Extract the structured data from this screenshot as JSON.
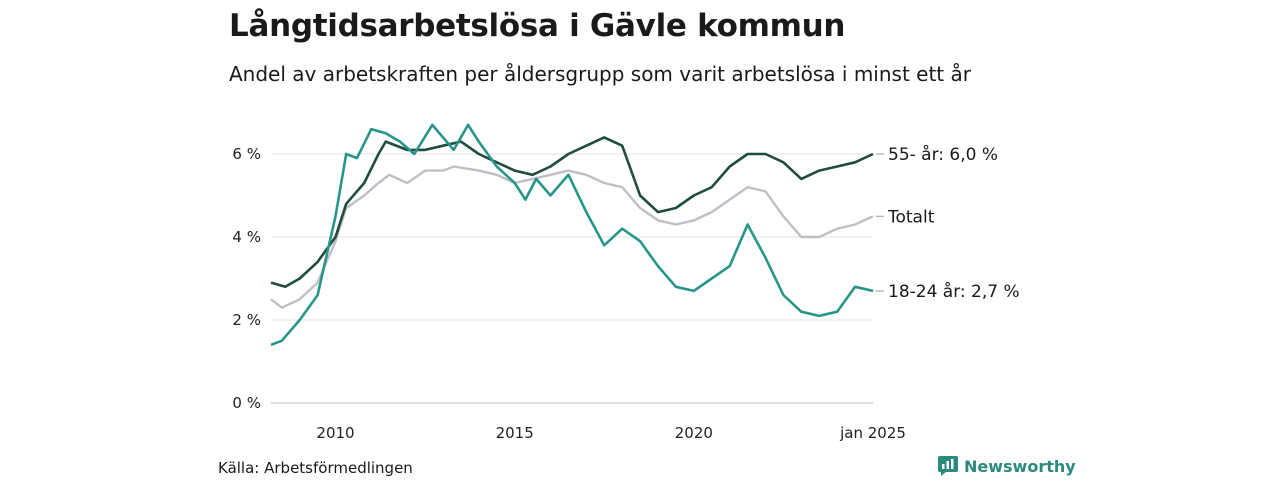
{
  "title": "Långtidsarbetslösa i Gävle kommun",
  "subtitle": "Andel av arbetskraften per åldersgrupp som varit arbetslösa i minst ett år",
  "source": "Källa: Arbetsförmedlingen",
  "brand": "Newsworthy",
  "chart_data": {
    "type": "line",
    "x_ticks": [
      "2010",
      "2015",
      "2020",
      "jan 2025"
    ],
    "y_ticks": [
      "0 %",
      "2 %",
      "4 %",
      "6 %"
    ],
    "ylim": [
      0,
      7
    ],
    "x_range": [
      "2008-03",
      "2025-01"
    ],
    "grid": true,
    "series": [
      {
        "name": "Totalt",
        "label": "Totalt",
        "color": "#c0bec6",
        "values": [
          [
            2008.2,
            2.5
          ],
          [
            2008.5,
            2.3
          ],
          [
            2009.0,
            2.5
          ],
          [
            2009.5,
            2.9
          ],
          [
            2010.0,
            3.9
          ],
          [
            2010.3,
            4.7
          ],
          [
            2010.8,
            5.0
          ],
          [
            2011.2,
            5.3
          ],
          [
            2011.5,
            5.5
          ],
          [
            2012.0,
            5.3
          ],
          [
            2012.5,
            5.6
          ],
          [
            2013.0,
            5.6
          ],
          [
            2013.3,
            5.7
          ],
          [
            2014.0,
            5.6
          ],
          [
            2014.5,
            5.5
          ],
          [
            2015.0,
            5.3
          ],
          [
            2015.5,
            5.4
          ],
          [
            2016.0,
            5.5
          ],
          [
            2016.5,
            5.6
          ],
          [
            2017.0,
            5.5
          ],
          [
            2017.5,
            5.3
          ],
          [
            2018.0,
            5.2
          ],
          [
            2018.5,
            4.7
          ],
          [
            2019.0,
            4.4
          ],
          [
            2019.5,
            4.3
          ],
          [
            2020.0,
            4.4
          ],
          [
            2020.5,
            4.6
          ],
          [
            2021.0,
            4.9
          ],
          [
            2021.5,
            5.2
          ],
          [
            2022.0,
            5.1
          ],
          [
            2022.5,
            4.5
          ],
          [
            2023.0,
            4.0
          ],
          [
            2023.5,
            4.0
          ],
          [
            2024.0,
            4.2
          ],
          [
            2024.5,
            4.3
          ],
          [
            2025.0,
            4.5
          ]
        ]
      },
      {
        "name": "55- år",
        "label": "55- år: 6,0 %",
        "color": "#1f4d40",
        "values": [
          [
            2008.2,
            2.9
          ],
          [
            2008.6,
            2.8
          ],
          [
            2009.0,
            3.0
          ],
          [
            2009.5,
            3.4
          ],
          [
            2010.0,
            4.0
          ],
          [
            2010.3,
            4.8
          ],
          [
            2010.8,
            5.3
          ],
          [
            2011.2,
            6.0
          ],
          [
            2011.4,
            6.3
          ],
          [
            2012.0,
            6.1
          ],
          [
            2012.5,
            6.1
          ],
          [
            2013.0,
            6.2
          ],
          [
            2013.5,
            6.3
          ],
          [
            2014.0,
            6.0
          ],
          [
            2014.5,
            5.8
          ],
          [
            2015.0,
            5.6
          ],
          [
            2015.5,
            5.5
          ],
          [
            2016.0,
            5.7
          ],
          [
            2016.5,
            6.0
          ],
          [
            2017.0,
            6.2
          ],
          [
            2017.5,
            6.4
          ],
          [
            2018.0,
            6.2
          ],
          [
            2018.5,
            5.0
          ],
          [
            2019.0,
            4.6
          ],
          [
            2019.5,
            4.7
          ],
          [
            2020.0,
            5.0
          ],
          [
            2020.5,
            5.2
          ],
          [
            2021.0,
            5.7
          ],
          [
            2021.5,
            6.0
          ],
          [
            2022.0,
            6.0
          ],
          [
            2022.5,
            5.8
          ],
          [
            2023.0,
            5.4
          ],
          [
            2023.5,
            5.6
          ],
          [
            2024.0,
            5.7
          ],
          [
            2024.5,
            5.8
          ],
          [
            2025.0,
            6.0
          ]
        ]
      },
      {
        "name": "18-24 år",
        "label": "18-24 år: 2,7 %",
        "color": "#27968a",
        "values": [
          [
            2008.2,
            1.4
          ],
          [
            2008.5,
            1.5
          ],
          [
            2009.0,
            2.0
          ],
          [
            2009.5,
            2.6
          ],
          [
            2010.0,
            4.5
          ],
          [
            2010.3,
            6.0
          ],
          [
            2010.6,
            5.9
          ],
          [
            2011.0,
            6.6
          ],
          [
            2011.4,
            6.5
          ],
          [
            2011.8,
            6.3
          ],
          [
            2012.2,
            6.0
          ],
          [
            2012.7,
            6.7
          ],
          [
            2013.0,
            6.4
          ],
          [
            2013.3,
            6.1
          ],
          [
            2013.7,
            6.7
          ],
          [
            2014.0,
            6.3
          ],
          [
            2014.5,
            5.7
          ],
          [
            2015.0,
            5.3
          ],
          [
            2015.3,
            4.9
          ],
          [
            2015.6,
            5.4
          ],
          [
            2016.0,
            5.0
          ],
          [
            2016.5,
            5.5
          ],
          [
            2017.0,
            4.6
          ],
          [
            2017.5,
            3.8
          ],
          [
            2018.0,
            4.2
          ],
          [
            2018.5,
            3.9
          ],
          [
            2019.0,
            3.3
          ],
          [
            2019.5,
            2.8
          ],
          [
            2020.0,
            2.7
          ],
          [
            2020.5,
            3.0
          ],
          [
            2021.0,
            3.3
          ],
          [
            2021.5,
            4.3
          ],
          [
            2022.0,
            3.5
          ],
          [
            2022.5,
            2.6
          ],
          [
            2023.0,
            2.2
          ],
          [
            2023.5,
            2.1
          ],
          [
            2024.0,
            2.2
          ],
          [
            2024.5,
            2.8
          ],
          [
            2025.0,
            2.7
          ]
        ]
      }
    ]
  }
}
